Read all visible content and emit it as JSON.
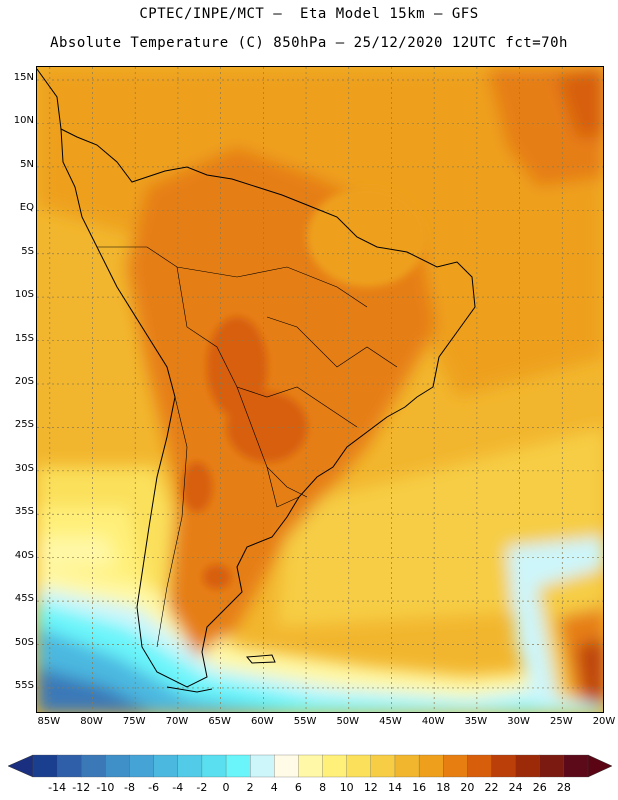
{
  "header": {
    "line1": "CPTEC/INPE/MCT –  Eta Model 15km – GFS",
    "line2": "Absolute Temperature (C) 850hPa – 25/12/2020 12UTC fct=70h"
  },
  "map": {
    "lat_labels": [
      "15N",
      "10N",
      "5N",
      "EQ",
      "5S",
      "10S",
      "15S",
      "20S",
      "25S",
      "30S",
      "35S",
      "40S",
      "45S",
      "50S",
      "55S"
    ],
    "lat_values": [
      15,
      10,
      5,
      0,
      -5,
      -10,
      -15,
      -20,
      -25,
      -30,
      -35,
      -40,
      -45,
      -50,
      -55
    ],
    "lon_labels": [
      "85W",
      "80W",
      "75W",
      "70W",
      "65W",
      "60W",
      "55W",
      "50W",
      "45W",
      "40W",
      "35W",
      "30W",
      "25W",
      "20W"
    ],
    "lon_values": [
      -85,
      -80,
      -75,
      -70,
      -65,
      -60,
      -55,
      -50,
      -45,
      -40,
      -35,
      -30,
      -25,
      -20
    ],
    "lat_range": [
      -58,
      16.5
    ],
    "lon_range": [
      -86.5,
      -20
    ]
  },
  "colorbar": {
    "labels": [
      "-14",
      "-12",
      "-10",
      "-8",
      "-6",
      "-4",
      "-2",
      "0",
      "2",
      "4",
      "6",
      "8",
      "10",
      "12",
      "14",
      "16",
      "18",
      "20",
      "22",
      "24",
      "26",
      "28"
    ],
    "colors": [
      "#1b3f8f",
      "#2e5fa8",
      "#3a78b8",
      "#3f8fc8",
      "#45a3d5",
      "#4bb8e0",
      "#52cbe8",
      "#5adff0",
      "#6af5fa",
      "#cdf6fb",
      "#fffbe6",
      "#fff8a6",
      "#fff07a",
      "#fbe05c",
      "#f6cd45",
      "#f2b62e",
      "#eea01c",
      "#e67e12",
      "#d75e0a",
      "#bb3f08",
      "#9c2a08",
      "#7a1a10",
      "#5c0a1a"
    ],
    "under_color": "#1a2f80",
    "over_color": "#5a0414"
  }
}
